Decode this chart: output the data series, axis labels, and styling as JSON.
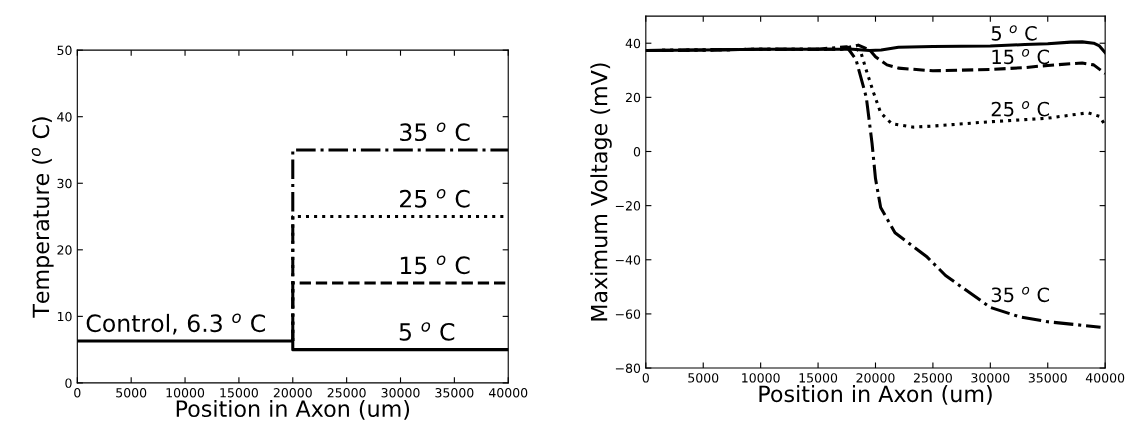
{
  "chart_data": [
    {
      "type": "line",
      "xlabel": "Position in Axon (um)",
      "ylabel": "Temperature ($^{o}$ C)",
      "xlim": [
        0,
        40000
      ],
      "xticks": [
        0,
        5000,
        10000,
        15000,
        20000,
        25000,
        30000,
        35000,
        40000
      ],
      "ylim": [
        0,
        50
      ],
      "yticks": [
        0,
        10,
        20,
        30,
        40,
        50
      ],
      "series": [
        {
          "color": "#000000",
          "line_style": "solid",
          "x": [
            0,
            20000,
            20000,
            40000
          ],
          "values": [
            6.3,
            6.3,
            5,
            5
          ]
        },
        {
          "color": "#000000",
          "line_style": "dashed",
          "x": [
            20000,
            20000,
            40000
          ],
          "values": [
            6.3,
            15,
            15
          ]
        },
        {
          "color": "#000000",
          "line_style": "dotted",
          "x": [
            20000,
            20000,
            40000
          ],
          "values": [
            6.3,
            25,
            25
          ]
        },
        {
          "color": "#000000",
          "line_style": "dashdot",
          "x": [
            20000,
            20000,
            40000
          ],
          "values": [
            6.3,
            35,
            35
          ]
        }
      ],
      "annotations": [
        {
          "text": "Control, 6.3 $^{o}$ C",
          "x": 9150,
          "y": 6.3
        },
        {
          "text": "5 $^{o}$ C",
          "x": 32440,
          "y": 5
        },
        {
          "text": "15 $^{o}$ C",
          "x": 33170,
          "y": 15
        },
        {
          "text": "25 $^{o}$ C",
          "x": 33170,
          "y": 25
        },
        {
          "text": "35 $^{o}$ C",
          "x": 33170,
          "y": 35
        }
      ]
    },
    {
      "type": "line",
      "xlabel": "Position in Axon (um)",
      "ylabel": "Maximum Voltage (mV)",
      "xlim": [
        0,
        40000
      ],
      "xticks": [
        0,
        5000,
        10000,
        15000,
        20000,
        25000,
        30000,
        35000,
        40000
      ],
      "ylim": [
        -80,
        50
      ],
      "yticks": [
        -80,
        -60,
        -40,
        -20,
        0,
        20,
        40
      ],
      "series": [
        {
          "color": "#000000",
          "line_style": "solid",
          "x": [
            0,
            5000,
            10000,
            15000,
            18000,
            19500,
            20500,
            22000,
            25000,
            30000,
            33000,
            35000,
            37000,
            38000,
            39000,
            39500,
            40000
          ],
          "values": [
            37.3,
            37.5,
            37.8,
            37.8,
            37.8,
            37.3,
            37.5,
            38.5,
            38.8,
            39.0,
            39.5,
            39.8,
            40.4,
            40.5,
            40.0,
            39,
            36.5
          ]
        },
        {
          "color": "#000000",
          "line_style": "dashed",
          "x": [
            0,
            5000,
            10000,
            15000,
            17000,
            18500,
            19500,
            20000,
            21000,
            22000,
            25000,
            30000,
            33000,
            35000,
            38000,
            39000,
            40000
          ],
          "values": [
            37.3,
            37.5,
            37.8,
            37.8,
            37.8,
            39.3,
            37.5,
            35,
            32,
            30.8,
            29.8,
            30.3,
            31,
            31.8,
            32.7,
            32,
            28.8
          ]
        },
        {
          "color": "#000000",
          "line_style": "dotted",
          "x": [
            0,
            5000,
            10000,
            15000,
            17000,
            18000,
            18700,
            19200,
            19850,
            20450,
            21400,
            23300,
            25000,
            30000,
            35000,
            38500,
            39500,
            40000
          ],
          "values": [
            37.3,
            37.5,
            37.8,
            37.8,
            37.8,
            38.5,
            37,
            30,
            21.5,
            14.3,
            10.3,
            9,
            9.4,
            11,
            12.3,
            14.3,
            13,
            9.7
          ]
        },
        {
          "color": "#000000",
          "line_style": "dashdot",
          "x": [
            0,
            5000,
            10000,
            15000,
            17500,
            18300,
            19200,
            19700,
            20000,
            20450,
            21700,
            24500,
            26100,
            30000,
            32500,
            35000,
            38000,
            39600
          ],
          "values": [
            37.3,
            37.5,
            37.8,
            37.8,
            38.7,
            34,
            20,
            3,
            -10,
            -20.7,
            -30,
            -39,
            -45.8,
            -57.6,
            -61,
            -62.9,
            -64.2,
            -64.9
          ]
        }
      ],
      "annotations": [
        {
          "text": "5 $^{o}$ C",
          "x": 30000,
          "y": 39
        },
        {
          "text": "15 $^{o}$ C",
          "x": 30000,
          "y": 30.3
        },
        {
          "text": "25 $^{o}$ C",
          "x": 30000,
          "y": 11
        },
        {
          "text": "35 $^{o}$ C",
          "x": 30000,
          "y": -57.6
        }
      ]
    }
  ]
}
